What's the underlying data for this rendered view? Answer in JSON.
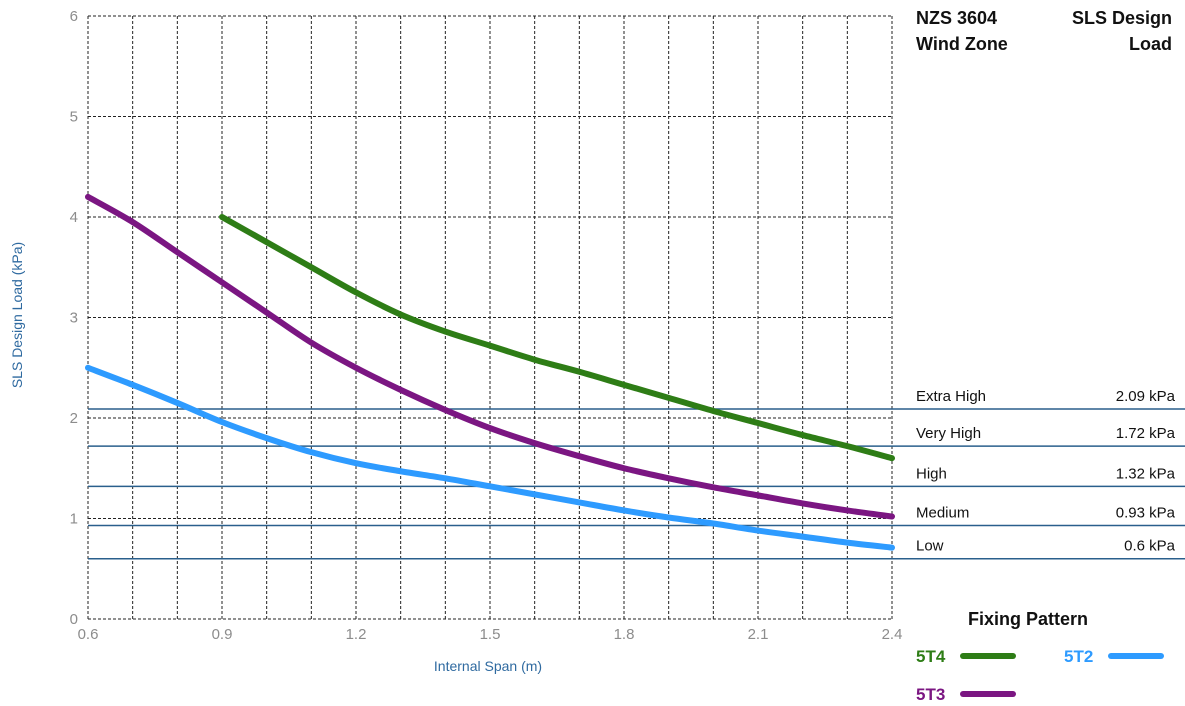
{
  "chart_data": {
    "type": "line",
    "xlabel": "Internal Span (m)",
    "ylabel": "SLS Design Load (kPa)",
    "xlim": [
      0.6,
      2.4
    ],
    "ylim": [
      0,
      6
    ],
    "x_ticks": [
      "0.6",
      "0.9",
      "1.2",
      "1.5",
      "1.8",
      "2.1",
      "2.4"
    ],
    "y_ticks": [
      "0",
      "1",
      "2",
      "3",
      "4",
      "5",
      "6"
    ],
    "grid": true,
    "series": [
      {
        "name": "5T4",
        "color": "#2e7d16",
        "x": [
          0.9,
          1.0,
          1.1,
          1.2,
          1.3,
          1.4,
          1.5,
          1.6,
          1.7,
          1.8,
          1.9,
          2.0,
          2.1,
          2.2,
          2.3,
          2.4
        ],
        "y": [
          4.0,
          3.75,
          3.5,
          3.25,
          3.03,
          2.86,
          2.72,
          2.58,
          2.46,
          2.33,
          2.2,
          2.07,
          1.95,
          1.83,
          1.72,
          1.6
        ]
      },
      {
        "name": "5T3",
        "color": "#7b1682",
        "x": [
          0.6,
          0.7,
          0.8,
          0.9,
          1.0,
          1.1,
          1.2,
          1.3,
          1.4,
          1.5,
          1.6,
          1.7,
          1.8,
          1.9,
          2.0,
          2.1,
          2.2,
          2.3,
          2.4
        ],
        "y": [
          4.2,
          3.95,
          3.65,
          3.35,
          3.05,
          2.75,
          2.5,
          2.28,
          2.08,
          1.9,
          1.75,
          1.62,
          1.5,
          1.4,
          1.31,
          1.23,
          1.15,
          1.08,
          1.02
        ]
      },
      {
        "name": "5T2",
        "color": "#2e9bff",
        "x": [
          0.6,
          0.7,
          0.8,
          0.9,
          1.0,
          1.1,
          1.2,
          1.3,
          1.4,
          1.5,
          1.6,
          1.7,
          1.8,
          1.9,
          2.0,
          2.1,
          2.2,
          2.3,
          2.4
        ],
        "y": [
          2.5,
          2.33,
          2.15,
          1.96,
          1.8,
          1.66,
          1.55,
          1.47,
          1.4,
          1.32,
          1.24,
          1.16,
          1.08,
          1.01,
          0.95,
          0.88,
          0.82,
          0.76,
          0.71
        ]
      }
    ],
    "wind_zones": {
      "header_left": [
        "NZS 3604",
        "Wind Zone"
      ],
      "header_right": [
        "SLS Design",
        "Load"
      ],
      "zones": [
        {
          "name": "Extra High",
          "value": 2.09,
          "label": "2.09 kPa"
        },
        {
          "name": "Very High",
          "value": 1.72,
          "label": "1.72 kPa"
        },
        {
          "name": "High",
          "value": 1.32,
          "label": "1.32 kPa"
        },
        {
          "name": "Medium",
          "value": 0.93,
          "label": "0.93 kPa"
        },
        {
          "name": "Low",
          "value": 0.6,
          "label": "0.6 kPa"
        }
      ],
      "line_color": "#2a5f8c"
    },
    "legend": {
      "title": "Fixing Pattern",
      "placement": "bottom-right",
      "items": [
        "5T4",
        "5T2",
        "5T3"
      ]
    }
  }
}
